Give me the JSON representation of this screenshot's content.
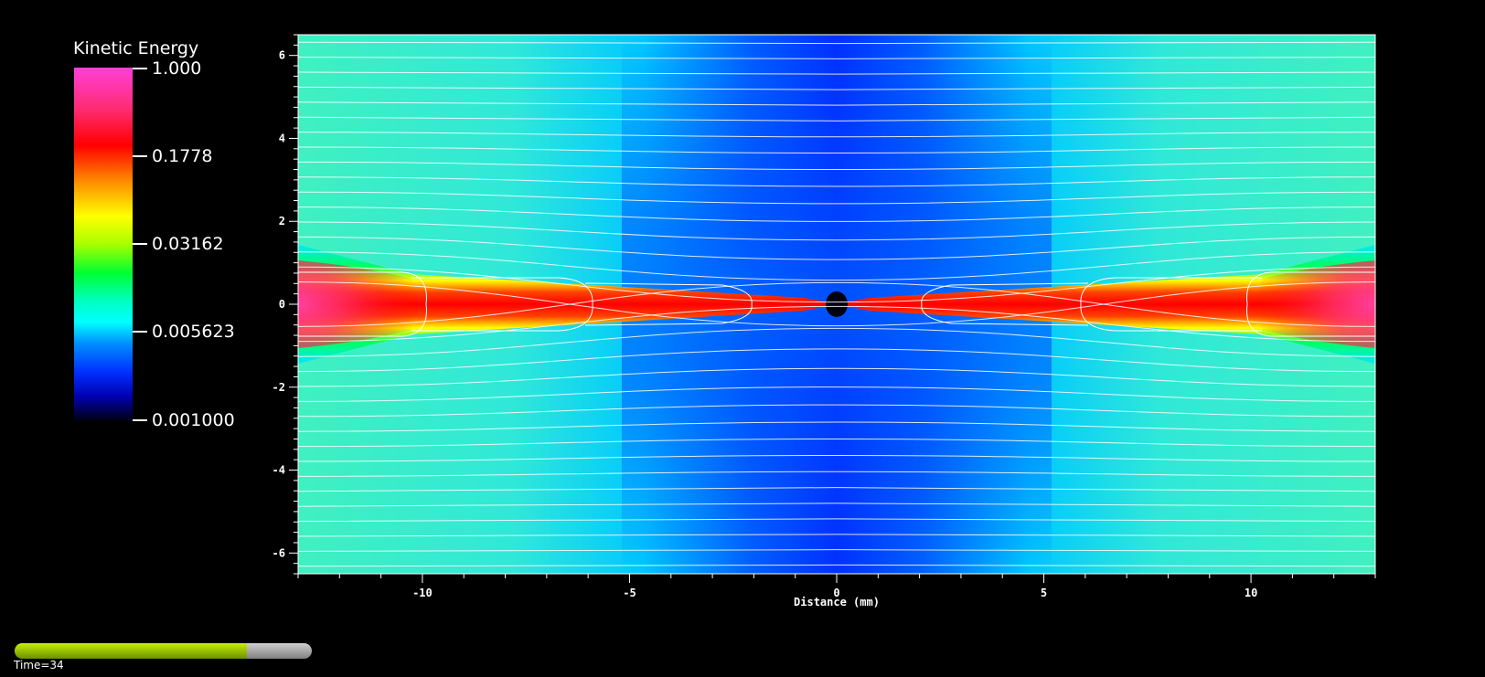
{
  "legend": {
    "title": "Kinetic Energy",
    "labels": [
      "1.000",
      "0.1778",
      "0.03162",
      "0.005623",
      "0.001000"
    ]
  },
  "chart_data": {
    "type": "heatmap",
    "title": "",
    "xlabel": "Distance (mm)",
    "ylabel": "",
    "xlim": [
      -13,
      13
    ],
    "ylim": [
      -6.5,
      6.5
    ],
    "x_ticks": [
      -10,
      -5,
      0,
      5,
      10
    ],
    "y_ticks": [
      6,
      4,
      2,
      0,
      -2,
      -4,
      -6
    ],
    "colorscale": "log",
    "color_range": [
      0.001,
      1.0
    ],
    "colors": {
      "background": "#40f0c0",
      "low": "#0030ff",
      "high": "#ff0000",
      "peak": "#ff40d8",
      "streamline": "#ffffff"
    },
    "streamlines": true,
    "grid": false
  },
  "time": {
    "label": "Time=34",
    "progress": 0.78
  }
}
